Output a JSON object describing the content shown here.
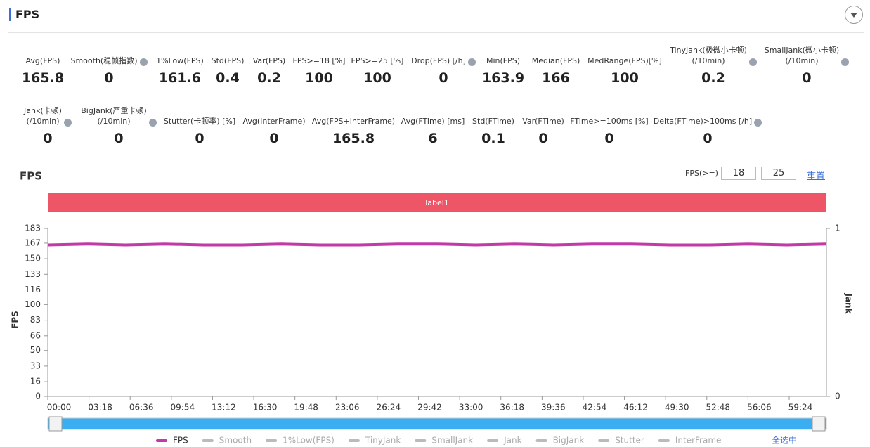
{
  "header": {
    "title": "FPS"
  },
  "metrics": [
    {
      "label": "Avg(FPS)",
      "value": 165.8,
      "help": false
    },
    {
      "label": "Smooth(稳帧指数)",
      "value": 0,
      "help": true
    },
    {
      "label": "1%Low(FPS)",
      "value": 161.6,
      "help": false
    },
    {
      "label": "Std(FPS)",
      "value": 0.4,
      "help": false
    },
    {
      "label": "Var(FPS)",
      "value": 0.2,
      "help": false
    },
    {
      "label": "FPS>=18 [%]",
      "value": 100,
      "help": false
    },
    {
      "label": "FPS>=25 [%]",
      "value": 100,
      "help": false
    },
    {
      "label": "Drop(FPS) [/h]",
      "value": 0,
      "help": true
    },
    {
      "label": "Min(FPS)",
      "value": 163.9,
      "help": false
    },
    {
      "label": "Median(FPS)",
      "value": 166,
      "help": false
    },
    {
      "label": "MedRange(FPS)[%]",
      "value": 100,
      "help": false
    },
    {
      "label": "TinyJank(极微小卡顿)\n(/10min)",
      "value": 0.2,
      "help": true
    },
    {
      "label": "SmallJank(微小卡顿)\n(/10min)",
      "value": 0,
      "help": true
    },
    {
      "label": "Jank(卡顿)\n(/10min)",
      "value": 0,
      "help": true
    },
    {
      "label": "BigJank(严重卡顿)\n(/10min)",
      "value": 0,
      "help": true
    },
    {
      "label": "Stutter(卡顿率) [%]",
      "value": 0,
      "help": false
    },
    {
      "label": "Avg(InterFrame)",
      "value": 0,
      "help": false
    },
    {
      "label": "Avg(FPS+InterFrame)",
      "value": 165.8,
      "help": false
    },
    {
      "label": "Avg(FTime) [ms]",
      "value": 6,
      "help": false
    },
    {
      "label": "Std(FTime)",
      "value": 0.1,
      "help": false
    },
    {
      "label": "Var(FTime)",
      "value": 0,
      "help": false
    },
    {
      "label": "FTime>=100ms [%]",
      "value": 0,
      "help": false
    },
    {
      "label": "Delta(FTime)>100ms [/h]",
      "value": 0,
      "help": true
    }
  ],
  "chart_data": {
    "type": "line",
    "title": "FPS",
    "threshold_label": "FPS(>=)",
    "thresholds": [
      18,
      25
    ],
    "reset": "重置",
    "band_label": "label1",
    "ylabel": "FPS",
    "y2label": "Jank",
    "x": [
      0,
      187,
      374,
      561,
      748,
      935,
      1122,
      1309,
      1496,
      1683,
      1870,
      2057,
      2244,
      2431,
      2618,
      2805,
      2992,
      3179,
      3366,
      3553,
      3740
    ],
    "series": [
      {
        "name": "FPS",
        "color": "#c23aa8",
        "values": [
          165,
          166,
          165,
          166,
          165,
          165,
          166,
          165,
          165,
          166,
          166,
          165,
          166,
          165,
          166,
          166,
          165,
          165,
          166,
          165,
          166
        ]
      }
    ],
    "other_legend": [
      {
        "name": "Smooth",
        "color": "#bbbbbb"
      },
      {
        "name": "1%Low(FPS)",
        "color": "#bbbbbb"
      },
      {
        "name": "TinyJank",
        "color": "#bbbbbb"
      },
      {
        "name": "SmallJank",
        "color": "#bbbbbb"
      },
      {
        "name": "Jank",
        "color": "#bbbbbb"
      },
      {
        "name": "BigJank",
        "color": "#bbbbbb"
      },
      {
        "name": "Stutter",
        "color": "#bbbbbb"
      },
      {
        "name": "InterFrame",
        "color": "#bbbbbb"
      }
    ],
    "select_all": "全选中",
    "xlim": [
      0,
      3743
    ],
    "xticks": [
      {
        "value": 0,
        "label": "00:00"
      },
      {
        "value": 198,
        "label": "03:18"
      },
      {
        "value": 396,
        "label": "06:36"
      },
      {
        "value": 594,
        "label": "09:54"
      },
      {
        "value": 792,
        "label": "13:12"
      },
      {
        "value": 990,
        "label": "16:30"
      },
      {
        "value": 1188,
        "label": "19:48"
      },
      {
        "value": 1386,
        "label": "23:06"
      },
      {
        "value": 1584,
        "label": "26:24"
      },
      {
        "value": 1782,
        "label": "29:42"
      },
      {
        "value": 1980,
        "label": "33:00"
      },
      {
        "value": 2178,
        "label": "36:18"
      },
      {
        "value": 2376,
        "label": "39:36"
      },
      {
        "value": 2574,
        "label": "42:54"
      },
      {
        "value": 2772,
        "label": "46:12"
      },
      {
        "value": 2970,
        "label": "49:30"
      },
      {
        "value": 3168,
        "label": "52:48"
      },
      {
        "value": 3366,
        "label": "56:06"
      },
      {
        "value": 3564,
        "label": "59:24"
      }
    ],
    "ylim": [
      0,
      183
    ],
    "yticks": [
      0,
      16,
      33,
      50,
      66,
      83,
      100,
      116,
      133,
      150,
      167,
      183
    ],
    "y2lim": [
      0,
      1
    ],
    "y2ticks": [
      0,
      1
    ]
  }
}
